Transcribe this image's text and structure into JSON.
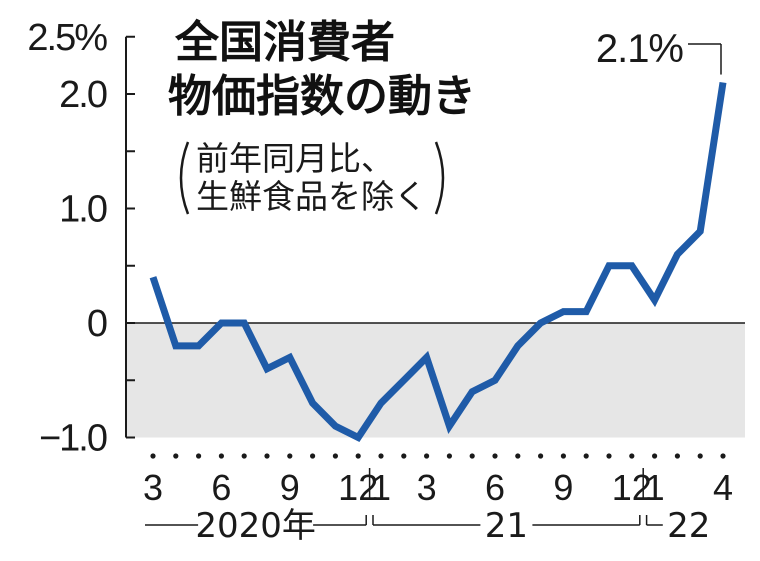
{
  "chart_data": {
    "type": "line",
    "title_lines": [
      "全国消費者",
      "物価指数の動き"
    ],
    "subtitle_lines": [
      "前年同月比、",
      "生鮮食品を除く"
    ],
    "ylim": [
      -1.0,
      2.5
    ],
    "y_ticks": [
      {
        "value": 2.5,
        "label": "2.5%"
      },
      {
        "value": 2.0,
        "label": "2.0"
      },
      {
        "value": 1.0,
        "label": "1.0"
      },
      {
        "value": 0,
        "label": "0"
      },
      {
        "value": -1.0,
        "label": "−1.0"
      }
    ],
    "x": [
      "2020-03",
      "2020-04",
      "2020-05",
      "2020-06",
      "2020-07",
      "2020-08",
      "2020-09",
      "2020-10",
      "2020-11",
      "2020-12",
      "2021-01",
      "2021-02",
      "2021-03",
      "2021-04",
      "2021-05",
      "2021-06",
      "2021-07",
      "2021-08",
      "2021-09",
      "2021-10",
      "2021-11",
      "2021-12",
      "2022-01",
      "2022-02",
      "2022-03",
      "2022-04"
    ],
    "series": [
      {
        "values": [
          0.4,
          -0.2,
          -0.2,
          0.0,
          0.0,
          -0.4,
          -0.3,
          -0.7,
          -0.9,
          -1.0,
          -0.7,
          -0.5,
          -0.3,
          -0.9,
          -0.6,
          -0.5,
          -0.2,
          0.0,
          0.1,
          0.1,
          0.5,
          0.5,
          0.2,
          0.6,
          0.8,
          2.1
        ]
      }
    ],
    "x_tick_labels": [
      {
        "month": "2020-03",
        "label": "3"
      },
      {
        "month": "2020-06",
        "label": "6"
      },
      {
        "month": "2020-09",
        "label": "9"
      },
      {
        "month": "2020-12",
        "label": "12"
      },
      {
        "month": "2021-01",
        "label": "1"
      },
      {
        "month": "2021-03",
        "label": "3"
      },
      {
        "month": "2021-06",
        "label": "6"
      },
      {
        "month": "2021-09",
        "label": "9"
      },
      {
        "month": "2021-12",
        "label": "12"
      },
      {
        "month": "2022-01",
        "label": "1"
      },
      {
        "month": "2022-04",
        "label": "4"
      }
    ],
    "year_labels": [
      {
        "from": "2020-03",
        "to": "2020-12",
        "label": "2020年"
      },
      {
        "from": "2021-01",
        "to": "2021-12",
        "label": "21"
      },
      {
        "from": "2022-01",
        "to": "2022-04",
        "label": "22"
      }
    ],
    "annotation": {
      "month": "2022-04",
      "value": 2.1,
      "label": "2.1%"
    },
    "negative_region_shaded": true,
    "grid": false,
    "colors": {
      "line": "#1f5ba8",
      "negative_fill": "#e6e6e6",
      "axis": "#1a1a1a"
    }
  }
}
